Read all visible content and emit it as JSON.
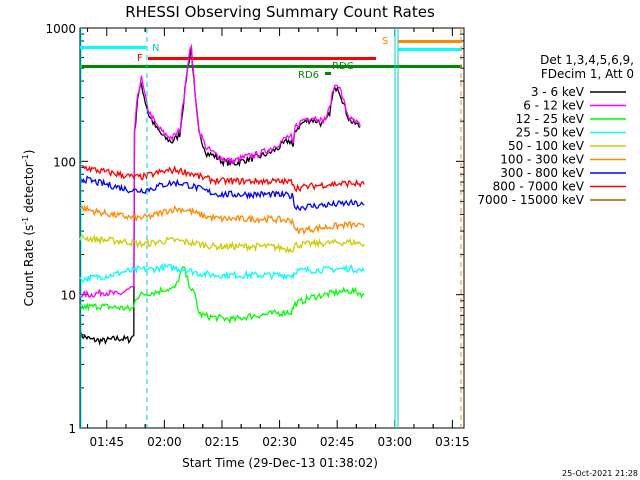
{
  "chart_data": {
    "type": "line",
    "title": "RHESSI Observing Summary Count Rates",
    "xlabel": "Start Time (29-Dec-13 01:38:02)",
    "ylabel_main": "Count Rate (s",
    "ylabel_sup1": "-1",
    "ylabel_mid": " detector",
    "ylabel_sup2": "-1",
    "ylabel_end": ")",
    "yscale": "log",
    "ylim": [
      1,
      1000
    ],
    "xlim_minutes": [
      0,
      100
    ],
    "x_ticks": [
      {
        "minute": 6.97,
        "label": "01:45"
      },
      {
        "minute": 21.97,
        "label": "02:00"
      },
      {
        "minute": 36.97,
        "label": "02:15"
      },
      {
        "minute": 51.97,
        "label": "02:30"
      },
      {
        "minute": 66.97,
        "label": "02:45"
      },
      {
        "minute": 81.97,
        "label": "03:00"
      },
      {
        "minute": 96.97,
        "label": "03:15"
      }
    ],
    "y_ticks": [
      {
        "value": 1,
        "label": "1"
      },
      {
        "value": 10,
        "label": "10"
      },
      {
        "value": 100,
        "label": "100"
      },
      {
        "value": 1000,
        "label": "1000"
      }
    ],
    "legend_header": [
      "Det 1,3,4,5,6,9,",
      "FDecim 1, Att 0"
    ],
    "series": [
      {
        "name": "3 - 6 keV",
        "color": "#000000",
        "x": [
          0,
          3,
          6,
          10,
          13,
          14,
          14.2,
          15,
          16,
          17,
          18,
          20,
          22,
          24,
          26,
          28,
          29,
          30,
          31,
          33,
          35,
          37,
          40,
          43,
          46,
          48,
          50,
          52,
          54,
          55,
          55.5,
          56,
          58,
          60,
          62,
          63,
          64,
          65,
          66,
          67,
          68,
          69,
          70,
          71,
          72,
          73
        ],
        "y": [
          5,
          4.6,
          4.5,
          4.7,
          4.6,
          5,
          160,
          300,
          380,
          280,
          220,
          175,
          150,
          140,
          160,
          500,
          700,
          300,
          160,
          115,
          110,
          100,
          96,
          102,
          107,
          112,
          118,
          128,
          142,
          142,
          125,
          170,
          195,
          205,
          200,
          190,
          200,
          230,
          330,
          370,
          310,
          250,
          210,
          195,
          190,
          180
        ]
      },
      {
        "name": "6 - 12 keV",
        "color": "#ff00ff",
        "x": [
          0,
          3,
          6,
          10,
          13,
          14,
          14.2,
          15,
          16,
          17,
          18,
          20,
          22,
          24,
          26,
          28,
          29,
          30,
          31,
          33,
          35,
          37,
          40,
          43,
          46,
          48,
          50,
          52,
          54,
          55,
          55.5,
          56,
          58,
          60,
          62,
          63,
          64,
          65,
          66,
          67,
          68,
          69,
          70,
          71,
          72,
          73
        ],
        "y": [
          10,
          10,
          10.5,
          10,
          11,
          11,
          165,
          320,
          420,
          300,
          235,
          185,
          160,
          150,
          170,
          520,
          760,
          310,
          170,
          125,
          115,
          105,
          100,
          108,
          112,
          118,
          126,
          138,
          152,
          152,
          130,
          180,
          205,
          215,
          210,
          200,
          210,
          250,
          350,
          390,
          330,
          260,
          215,
          200,
          195,
          185
        ]
      },
      {
        "name": "12 - 25 keV",
        "color": "#00ff00",
        "x": [
          0,
          5,
          10,
          13,
          14,
          14.5,
          16,
          18,
          20,
          22,
          24,
          25,
          26,
          27,
          28,
          29,
          30,
          31,
          32,
          34,
          36,
          38,
          40,
          42,
          44,
          46,
          48,
          50,
          52,
          54,
          55,
          55.5,
          56,
          58,
          60,
          62,
          64,
          66,
          68,
          70,
          72,
          73,
          74
        ],
        "y": [
          8,
          8.2,
          8,
          7.8,
          8,
          9.5,
          10,
          10.3,
          10.5,
          11,
          11,
          11.5,
          14,
          16,
          13,
          11,
          9.8,
          7.2,
          7,
          6.8,
          6.7,
          6.6,
          6.5,
          6.7,
          6.9,
          7,
          7.1,
          7.2,
          7.3,
          7.4,
          7.4,
          8,
          8.5,
          9,
          9.5,
          9.8,
          10,
          10.3,
          10.5,
          10.7,
          10.5,
          10.2,
          10
        ]
      },
      {
        "name": "25 - 50 keV",
        "color": "#00ffff",
        "x": [
          0,
          4,
          8,
          12,
          14,
          15,
          17,
          19,
          21,
          23,
          25,
          27,
          29,
          31,
          33,
          35,
          37,
          40,
          43,
          46,
          49,
          52,
          54,
          55,
          55.5,
          56,
          58,
          60,
          62,
          64,
          66,
          68,
          70,
          72,
          73,
          74
        ],
        "y": [
          13,
          13.5,
          14,
          15,
          15,
          15.5,
          15.5,
          15.5,
          16,
          16,
          15.8,
          15.5,
          15,
          14.5,
          14.2,
          14,
          14,
          14,
          14,
          14,
          14,
          14,
          14,
          14,
          14,
          15,
          15.2,
          15.3,
          15.3,
          15.4,
          15.5,
          15.6,
          15.7,
          15.5,
          15.2,
          15
        ]
      },
      {
        "name": "50 - 100 keV",
        "color": "#cccc00",
        "x": [
          0,
          4,
          8,
          12,
          14,
          15,
          17,
          19,
          21,
          23,
          25,
          27,
          29,
          31,
          33,
          35,
          37,
          40,
          43,
          46,
          49,
          52,
          54,
          55,
          55.5,
          56,
          58,
          60,
          62,
          64,
          66,
          68,
          70,
          72,
          73,
          74
        ],
        "y": [
          27,
          26,
          25.5,
          25,
          24.5,
          24,
          24,
          24.5,
          25,
          25.5,
          25.5,
          25,
          24.5,
          24,
          23.5,
          23,
          23,
          23,
          23,
          23,
          23,
          22.5,
          22,
          22,
          22,
          23.5,
          23.8,
          24,
          24.2,
          24.3,
          24.5,
          24.6,
          24.8,
          24.5,
          24.2,
          24
        ]
      },
      {
        "name": "100 - 300 keV",
        "color": "#ff8800",
        "x": [
          0,
          4,
          8,
          12,
          14,
          15,
          17,
          19,
          21,
          23,
          25,
          27,
          29,
          31,
          33,
          35,
          37,
          40,
          43,
          46,
          49,
          52,
          54,
          55,
          55.5,
          56,
          58,
          60,
          62,
          64,
          66,
          68,
          70,
          72,
          73,
          74
        ],
        "y": [
          45,
          42,
          40,
          38.5,
          37.5,
          37.5,
          38,
          39,
          41,
          43,
          44,
          43.5,
          42,
          40,
          38.5,
          37.5,
          37,
          37,
          37,
          37,
          37,
          36.5,
          36,
          36,
          36,
          30,
          30.5,
          31,
          31.5,
          32,
          32.5,
          33,
          33.5,
          33,
          32.5,
          32
        ]
      },
      {
        "name": "300 - 800 keV",
        "color": "#0000ff",
        "x": [
          0,
          4,
          8,
          12,
          14,
          15,
          17,
          19,
          21,
          23,
          25,
          27,
          29,
          31,
          33,
          35,
          37,
          40,
          43,
          46,
          49,
          52,
          54,
          55,
          55.5,
          56,
          58,
          60,
          62,
          64,
          66,
          68,
          70,
          72,
          73,
          74
        ],
        "y": [
          75,
          70,
          66,
          62,
          60.5,
          60.5,
          61,
          63,
          66,
          68,
          69,
          68,
          65.5,
          62.5,
          59.5,
          57.5,
          56.5,
          56.5,
          56.5,
          56.5,
          56.5,
          56,
          55.5,
          55,
          55,
          45,
          45.5,
          46,
          46.5,
          47,
          47.5,
          48,
          48.5,
          48,
          47.5,
          47
        ]
      },
      {
        "name": "800 - 7000 keV",
        "color": "#ff0000",
        "x": [
          0,
          4,
          8,
          12,
          14,
          15,
          17,
          19,
          21,
          23,
          25,
          27,
          29,
          31,
          33,
          35,
          37,
          40,
          43,
          46,
          49,
          52,
          54,
          55,
          55.5,
          56,
          58,
          60,
          62,
          64,
          66,
          68,
          70,
          72,
          73,
          74
        ],
        "y": [
          92,
          86,
          82,
          78,
          76,
          76,
          77,
          80,
          83,
          85,
          86,
          84,
          81,
          77,
          74,
          72,
          71,
          71,
          71,
          71,
          71,
          70.5,
          70,
          70,
          70,
          63,
          64,
          65,
          66,
          67,
          67.5,
          68,
          68.5,
          68,
          67.5,
          67
        ]
      },
      {
        "name": "7000 - 15000 keV",
        "color": "#996600",
        "x": [],
        "y": []
      }
    ],
    "annotations": [
      {
        "text": "N",
        "color": "#00cccc"
      },
      {
        "text": "F",
        "color": "#ff0000"
      },
      {
        "text": "S",
        "color": "#ff8800"
      },
      {
        "text": "RD6",
        "color": "#008800"
      },
      {
        "text": "RDC",
        "color": "#008800"
      }
    ],
    "timestamp": "25-Oct-2021 21:28"
  }
}
